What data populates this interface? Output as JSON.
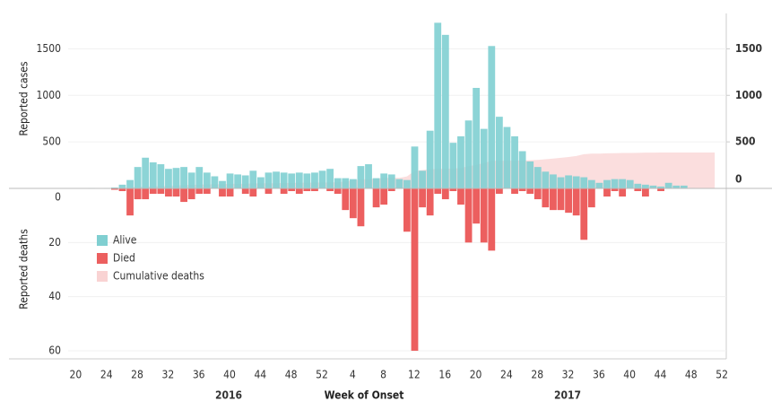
{
  "chart_data": {
    "type": "bar",
    "x_label": "Week of Onset",
    "y_label": "Reported cases",
    "y_label_lower": "Reported deaths",
    "years": [
      "2016",
      "2017"
    ],
    "categories": [
      "20",
      null,
      null,
      null,
      "24",
      null,
      null,
      null,
      "28",
      null,
      null,
      null,
      "32",
      null,
      null,
      null,
      "36",
      null,
      null,
      null,
      "40",
      null,
      null,
      null,
      "44",
      null,
      null,
      null,
      "48",
      null,
      null,
      null,
      "52",
      null,
      null,
      null,
      "4",
      null,
      null,
      null,
      "8",
      null,
      null,
      null,
      "12",
      null,
      null,
      null,
      "16",
      null,
      null,
      null,
      "20",
      null,
      null,
      null,
      "24",
      null,
      null,
      null,
      "28",
      null,
      null,
      null,
      "32",
      null,
      null,
      null,
      "36",
      null,
      null,
      null,
      "40",
      null,
      null,
      null,
      "44",
      null,
      null,
      null,
      "48",
      null,
      null,
      null,
      "52"
    ],
    "series": [
      {
        "name": "Alive",
        "color": "#80cfd1",
        "values": [
          0,
          0,
          0,
          5,
          0,
          5,
          10,
          40,
          90,
          230,
          330,
          280,
          260,
          210,
          220,
          230,
          170,
          230,
          170,
          130,
          80,
          160,
          150,
          140,
          190,
          120,
          170,
          180,
          170,
          160,
          170,
          160,
          170,
          190,
          210,
          110,
          110,
          100,
          240,
          260,
          110,
          160,
          150,
          100,
          90,
          450,
          190,
          620,
          1780,
          1650,
          490,
          560,
          730,
          1080,
          640,
          1530,
          770,
          660,
          560,
          400,
          290,
          230,
          180,
          150,
          120,
          140,
          130,
          120,
          90,
          60,
          90,
          100,
          100,
          90,
          50,
          40,
          30,
          20,
          60,
          30,
          30,
          5,
          2,
          2,
          2
        ]
      },
      {
        "name": "Died",
        "color": "#ec5f5f",
        "axis": "deaths",
        "values": [
          0,
          0,
          0,
          0,
          0,
          0,
          0.5,
          1,
          10,
          4,
          4,
          2,
          2,
          3,
          3,
          5,
          4,
          2,
          2,
          0,
          3,
          3,
          0,
          2,
          3,
          0,
          2,
          0,
          2,
          1,
          2,
          1,
          1,
          0,
          1,
          2,
          8,
          11,
          14,
          0,
          7,
          6,
          1,
          0,
          16,
          60,
          7,
          10,
          2,
          4,
          1,
          6,
          20,
          13,
          20,
          23,
          2,
          0,
          2,
          1,
          2,
          4,
          7,
          8,
          8,
          9,
          10,
          19,
          7,
          0,
          3,
          1,
          3,
          0,
          1,
          3,
          0,
          1,
          0,
          0,
          0,
          0,
          0,
          0,
          0
        ]
      },
      {
        "name": "Cumulative deaths",
        "color": "#f9d3d3",
        "axis": "y2",
        "values": [
          0,
          0,
          0,
          0,
          0,
          0,
          1,
          2,
          12,
          16,
          20,
          22,
          24,
          27,
          30,
          35,
          39,
          41,
          43,
          43,
          46,
          49,
          49,
          51,
          54,
          54,
          56,
          56,
          58,
          59,
          61,
          62,
          63,
          63,
          64,
          66,
          74,
          85,
          99,
          99,
          106,
          112,
          113,
          113,
          129,
          189,
          196,
          206,
          208,
          212,
          213,
          219,
          239,
          252,
          272,
          295,
          297,
          297,
          299,
          300,
          302,
          306,
          313,
          321,
          329,
          338,
          348,
          367,
          374,
          374,
          377,
          378,
          381,
          381,
          382,
          385,
          385,
          386,
          386,
          386,
          386,
          386,
          386,
          386,
          386
        ]
      }
    ],
    "ylim": [
      0,
      1880
    ],
    "yticks": [
      500,
      1000,
      1500
    ],
    "y2lim": [
      0,
      1880
    ],
    "y2ticks": [
      0,
      500,
      1000,
      1500
    ],
    "ylim_deaths": [
      0,
      63
    ],
    "yticks_deaths": [
      0,
      20,
      40,
      60
    ],
    "grid": true,
    "legend": "left"
  }
}
